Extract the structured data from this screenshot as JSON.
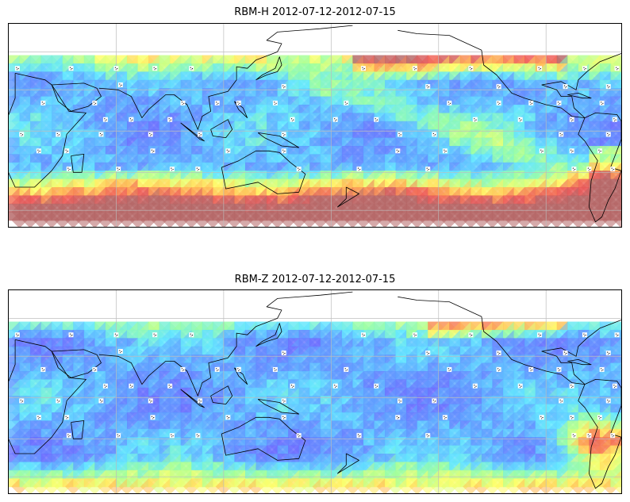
{
  "panels": [
    {
      "id": "rbm-h",
      "title": "RBM-H 2012-07-12-2012-07-15",
      "variable": "RBM-H"
    },
    {
      "id": "rbm-z",
      "title": "RBM-Z 2012-07-12-2012-07-15",
      "variable": "RBM-Z"
    }
  ],
  "colormap": {
    "name": "jet (translucent)",
    "stops": [
      "#6a6bff",
      "#5c9dff",
      "#5fe6ff",
      "#9bff9a",
      "#ffff66",
      "#ffb050",
      "#ee5555",
      "#b56565"
    ]
  },
  "colors": {
    "coastline": "#000000",
    "gridline": "#bdbdbd",
    "station_marker": "#ffffff"
  },
  "map": {
    "projection": "PlateCarree",
    "lon_range": [
      15,
      300
    ],
    "lat_range": [
      -58,
      65
    ],
    "data_lat_range": [
      -50,
      46
    ],
    "gridlines": true
  }
}
